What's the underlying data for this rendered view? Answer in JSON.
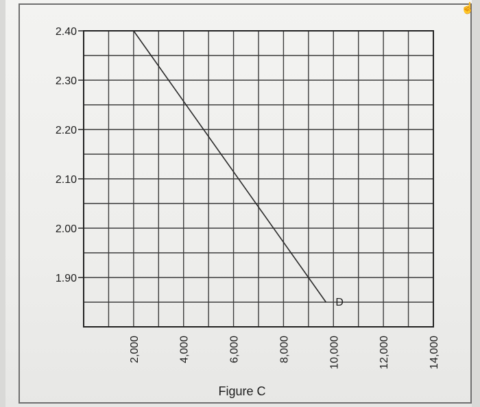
{
  "chart_data": {
    "type": "line",
    "caption": "Figure C",
    "xlabel": "",
    "ylabel": "",
    "xlim": [
      0,
      14000
    ],
    "ylim": [
      1.8,
      2.4
    ],
    "y_ticks": [
      {
        "value": 2.4,
        "label": "2.40"
      },
      {
        "value": 2.3,
        "label": "2.30"
      },
      {
        "value": 2.2,
        "label": "2.20"
      },
      {
        "value": 2.1,
        "label": "2.10"
      },
      {
        "value": 2.0,
        "label": "2.00"
      },
      {
        "value": 1.9,
        "label": "1.90"
      }
    ],
    "x_ticks": [
      {
        "value": 2000,
        "label": "2,000"
      },
      {
        "value": 4000,
        "label": "4,000"
      },
      {
        "value": 6000,
        "label": "6,000"
      },
      {
        "value": 8000,
        "label": "8,000"
      },
      {
        "value": 10000,
        "label": "10,000"
      },
      {
        "value": 12000,
        "label": "12,000"
      },
      {
        "value": 14000,
        "label": "14,000"
      }
    ],
    "grid": true,
    "grid_x_step": 1000,
    "grid_y_step": 0.05,
    "series": [
      {
        "x": [
          2000,
          9700
        ],
        "y": [
          2.4,
          1.85
        ],
        "end_label": "D"
      }
    ]
  },
  "colors": {
    "line": "#2a2a2a",
    "grid": "#3c3c3c",
    "axis": "#222222"
  }
}
